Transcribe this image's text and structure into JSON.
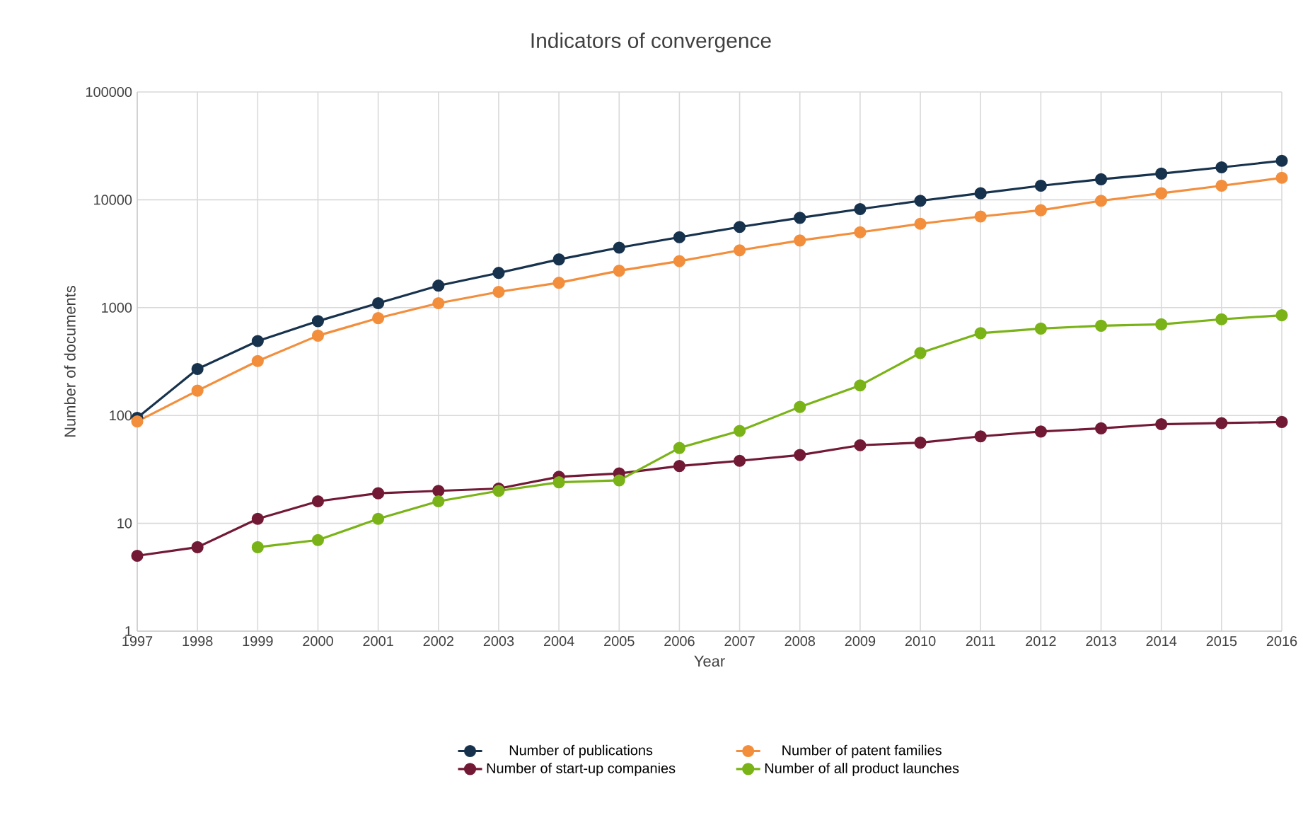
{
  "chart_data": {
    "type": "line",
    "title": "Indicators of convergence",
    "xlabel": "Year",
    "ylabel": "Number of documents",
    "categories": [
      "1997",
      "1998",
      "1999",
      "2000",
      "2001",
      "2002",
      "2003",
      "2004",
      "2005",
      "2006",
      "2007",
      "2008",
      "2009",
      "2010",
      "2011",
      "2012",
      "2013",
      "2014",
      "2015",
      "2016"
    ],
    "series": [
      {
        "name": "Number of publications",
        "color": "#17324d",
        "values": [
          95,
          270,
          490,
          750,
          1100,
          1600,
          2100,
          2800,
          3600,
          4500,
          5600,
          6800,
          8200,
          9800,
          11500,
          13500,
          15500,
          17500,
          20000,
          23000
        ]
      },
      {
        "name": "Number of patent families",
        "color": "#f28e3c",
        "values": [
          88,
          170,
          320,
          550,
          800,
          1100,
          1400,
          1700,
          2200,
          2700,
          3400,
          4200,
          5000,
          6000,
          7000,
          8000,
          9800,
          11500,
          13500,
          16000
        ]
      },
      {
        "name": "Number of start-up companies",
        "color": "#721935",
        "values": [
          5,
          6,
          11,
          16,
          19,
          20,
          21,
          27,
          29,
          34,
          38,
          43,
          53,
          56,
          64,
          71,
          76,
          83,
          85,
          87
        ]
      },
      {
        "name": "Number of all product launches",
        "color": "#7ab317",
        "values": [
          null,
          null,
          6,
          7,
          11,
          16,
          20,
          24,
          25,
          50,
          72,
          120,
          190,
          380,
          580,
          640,
          680,
          700,
          780,
          850
        ]
      }
    ],
    "log": "y",
    "ylim": [
      1,
      100000
    ],
    "yticks": [
      1,
      10,
      100,
      1000,
      10000,
      100000
    ],
    "grid": true,
    "legend": "bottom",
    "marker": "circle",
    "line_style": "solid"
  }
}
